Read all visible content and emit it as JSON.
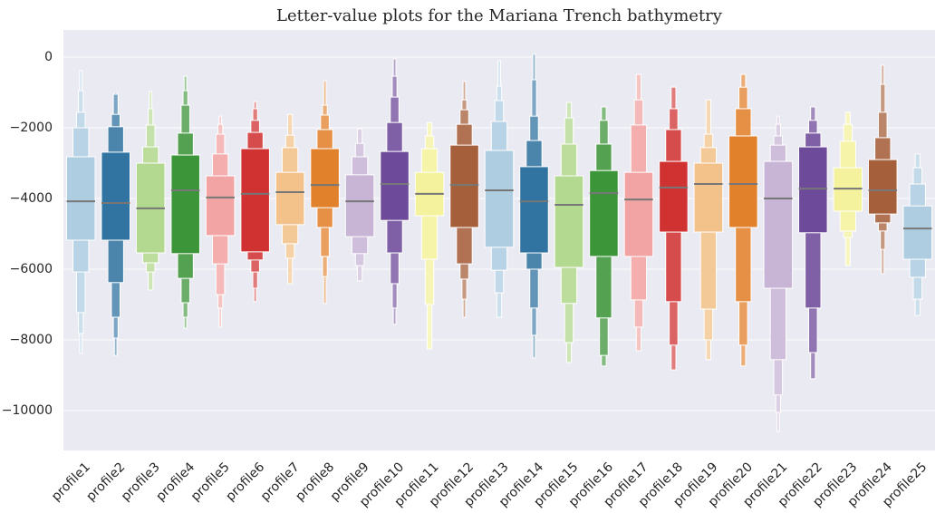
{
  "chart_data": {
    "type": "boxen",
    "title": "Letter-value plots for the Mariana Trench bathymetry",
    "categories": [
      "profile1",
      "profile2",
      "profile3",
      "profile4",
      "profile5",
      "profile6",
      "profile7",
      "profile8",
      "profile9",
      "profile10",
      "profile11",
      "profile12",
      "profile13",
      "profile14",
      "profile15",
      "profile16",
      "profile17",
      "profile18",
      "profile19",
      "profile20",
      "profile21",
      "profile22",
      "profile23",
      "profile24",
      "profile25"
    ],
    "ylim": [
      -11130,
      770
    ],
    "yticks": [
      {
        "value": 0,
        "label": "0"
      },
      {
        "value": -2000,
        "label": "−2000"
      },
      {
        "value": -4000,
        "label": "−4000"
      },
      {
        "value": -6000,
        "label": "−6000"
      },
      {
        "value": -8000,
        "label": "−8000"
      },
      {
        "value": -10000,
        "label": "−10000"
      }
    ],
    "grid": true,
    "profiles": [
      {
        "color": "#aecde1",
        "median": -4080,
        "boxes": [
          [
            -5180,
            -2820
          ],
          [
            -6080,
            -2000
          ],
          [
            -7230,
            -1560
          ],
          [
            -7820,
            -950
          ],
          [
            -8380,
            -380
          ]
        ]
      },
      {
        "color": "#3274a1",
        "median": -4130,
        "boxes": [
          [
            -5180,
            -2690
          ],
          [
            -6380,
            -1970
          ],
          [
            -7360,
            -1620
          ],
          [
            -7950,
            -1050
          ],
          [
            -8440,
            -1000
          ]
        ]
      },
      {
        "color": "#b3d88f",
        "median": -4280,
        "boxes": [
          [
            -5540,
            -3000
          ],
          [
            -5820,
            -2540
          ],
          [
            -6080,
            -1920
          ],
          [
            -6590,
            -1460
          ],
          [
            -6590,
            -970
          ]
        ]
      },
      {
        "color": "#3d9539",
        "median": -3770,
        "boxes": [
          [
            -5560,
            -2770
          ],
          [
            -6260,
            -2150
          ],
          [
            -6950,
            -1360
          ],
          [
            -7360,
            -950
          ],
          [
            -7670,
            -540
          ]
        ]
      },
      {
        "color": "#f2a3a3",
        "median": -3970,
        "boxes": [
          [
            -5050,
            -3360
          ],
          [
            -5850,
            -2740
          ],
          [
            -6720,
            -2180
          ],
          [
            -7100,
            -1900
          ],
          [
            -7640,
            -1670
          ]
        ]
      },
      {
        "color": "#d03232",
        "median": -3870,
        "boxes": [
          [
            -5510,
            -2590
          ],
          [
            -5740,
            -2130
          ],
          [
            -6080,
            -1790
          ],
          [
            -6540,
            -1460
          ],
          [
            -6920,
            -1260
          ]
        ]
      },
      {
        "color": "#f2c28a",
        "median": -3820,
        "boxes": [
          [
            -4740,
            -3260
          ],
          [
            -5280,
            -2560
          ],
          [
            -5690,
            -2210
          ],
          [
            -6410,
            -1620
          ]
        ]
      },
      {
        "color": "#e1812c",
        "median": -3620,
        "boxes": [
          [
            -4260,
            -2590
          ],
          [
            -4820,
            -2050
          ],
          [
            -5640,
            -1640
          ],
          [
            -6210,
            -1360
          ],
          [
            -6970,
            -670
          ]
        ]
      },
      {
        "color": "#c8b5d6",
        "median": -4080,
        "boxes": [
          [
            -5080,
            -3330
          ],
          [
            -5560,
            -2820
          ],
          [
            -5900,
            -2440
          ],
          [
            -6330,
            -2030
          ]
        ]
      },
      {
        "color": "#6d4a9a",
        "median": -3590,
        "boxes": [
          [
            -4620,
            -2670
          ],
          [
            -5540,
            -1850
          ],
          [
            -6410,
            -1130
          ],
          [
            -7100,
            -540
          ],
          [
            -7560,
            -50
          ]
        ]
      },
      {
        "color": "#f5f29d",
        "median": -3870,
        "boxes": [
          [
            -4490,
            -3260
          ],
          [
            -5720,
            -2590
          ],
          [
            -7000,
            -2230
          ],
          [
            -8260,
            -1850
          ]
        ]
      },
      {
        "color": "#a55f3b",
        "median": -3620,
        "boxes": [
          [
            -4820,
            -2490
          ],
          [
            -5850,
            -1900
          ],
          [
            -6280,
            -1490
          ],
          [
            -6850,
            -1210
          ],
          [
            -7360,
            -690
          ]
        ]
      },
      {
        "color": "#aecde1",
        "median": -3770,
        "boxes": [
          [
            -5380,
            -2640
          ],
          [
            -6030,
            -1820
          ],
          [
            -6670,
            -1230
          ],
          [
            -7360,
            -820
          ],
          [
            -7360,
            -100
          ]
        ]
      },
      {
        "color": "#3274a1",
        "median": -4080,
        "boxes": [
          [
            -5540,
            -3100
          ],
          [
            -6000,
            -2360
          ],
          [
            -7100,
            -1670
          ],
          [
            -7870,
            -640
          ],
          [
            -8510,
            80
          ]
        ]
      },
      {
        "color": "#b3d88f",
        "median": -4180,
        "boxes": [
          [
            -5950,
            -3360
          ],
          [
            -6970,
            -2460
          ],
          [
            -8080,
            -1720
          ],
          [
            -8640,
            -1280
          ]
        ]
      },
      {
        "color": "#3d9539",
        "median": -3850,
        "boxes": [
          [
            -5640,
            -3210
          ],
          [
            -7380,
            -2460
          ],
          [
            -8440,
            -1790
          ],
          [
            -8740,
            -1410
          ]
        ]
      },
      {
        "color": "#f2a3a3",
        "median": -4030,
        "boxes": [
          [
            -5640,
            -3260
          ],
          [
            -6870,
            -1920
          ],
          [
            -7640,
            -1210
          ],
          [
            -8310,
            -490
          ]
        ]
      },
      {
        "color": "#d03232",
        "median": -3690,
        "boxes": [
          [
            -4950,
            -2950
          ],
          [
            -6920,
            -2050
          ],
          [
            -8150,
            -1460
          ],
          [
            -8850,
            -850
          ]
        ]
      },
      {
        "color": "#f2c28a",
        "median": -3590,
        "boxes": [
          [
            -4950,
            -3000
          ],
          [
            -7130,
            -2560
          ],
          [
            -8000,
            -2180
          ],
          [
            -8560,
            -1210
          ]
        ]
      },
      {
        "color": "#e1812c",
        "median": -3590,
        "boxes": [
          [
            -4820,
            -2230
          ],
          [
            -6920,
            -1460
          ],
          [
            -8150,
            -850
          ],
          [
            -8740,
            -490
          ]
        ]
      },
      {
        "color": "#c8b5d6",
        "median": -4000,
        "boxes": [
          [
            -6540,
            -2950
          ],
          [
            -8560,
            -2490
          ],
          [
            -9560,
            -2230
          ],
          [
            -10050,
            -1900
          ],
          [
            -10590,
            -1670
          ]
        ]
      },
      {
        "color": "#6d4a9a",
        "median": -3720,
        "boxes": [
          [
            -4970,
            -2540
          ],
          [
            -7100,
            -2150
          ],
          [
            -8360,
            -1790
          ],
          [
            -9100,
            -1410
          ]
        ]
      },
      {
        "color": "#f5f29d",
        "median": -3720,
        "boxes": [
          [
            -4360,
            -3130
          ],
          [
            -4920,
            -2380
          ],
          [
            -5100,
            -1900
          ],
          [
            -5900,
            -1560
          ]
        ]
      },
      {
        "color": "#a55f3b",
        "median": -3770,
        "boxes": [
          [
            -4440,
            -2900
          ],
          [
            -4690,
            -2280
          ],
          [
            -4920,
            -1560
          ],
          [
            -5440,
            -770
          ],
          [
            -6130,
            -230
          ]
        ]
      },
      {
        "color": "#aecde1",
        "median": -4850,
        "boxes": [
          [
            -5720,
            -4210
          ],
          [
            -6230,
            -3590
          ],
          [
            -6850,
            -3130
          ],
          [
            -7310,
            -2740
          ]
        ]
      }
    ]
  }
}
